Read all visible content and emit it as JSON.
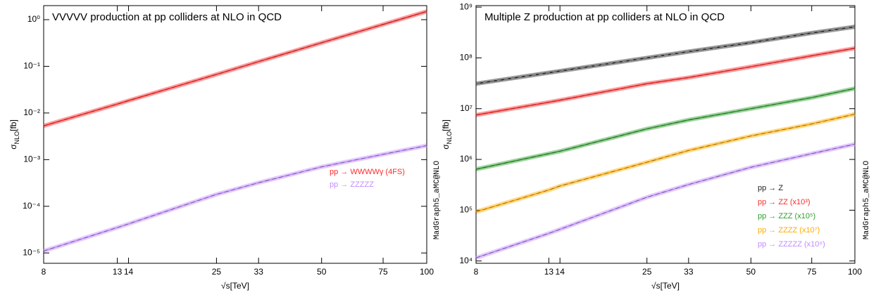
{
  "chart_data": [
    {
      "type": "line",
      "title": "VVVVV production at pp colliders at NLO in QCD",
      "xlabel": "√s[TeV]",
      "ylabel": [
        "σ",
        "NLO",
        "[fb]"
      ],
      "side_text": "MadGraph5_aMC@NLO",
      "xscale": "log",
      "yscale": "log",
      "x": [
        8,
        13,
        14,
        25,
        33,
        50,
        75,
        100
      ],
      "xlim": [
        8,
        100
      ],
      "xticks": [
        8,
        13,
        14,
        25,
        33,
        50,
        75,
        100
      ],
      "ylim": [
        6e-06,
        2
      ],
      "yticks": [
        {
          "value": 1e-05,
          "label": "10⁻⁵"
        },
        {
          "value": 0.0001,
          "label": "10⁻⁴"
        },
        {
          "value": 0.001,
          "label": "10⁻³"
        },
        {
          "value": 0.01,
          "label": "10⁻²"
        },
        {
          "value": 0.1,
          "label": "10⁻¹"
        },
        {
          "value": 1,
          "label": "10⁰"
        }
      ],
      "series": [
        {
          "name": "pp → WWWWγ (4FS)",
          "color": "#ff2a2a",
          "values": [
            0.0053,
            0.0155,
            0.0184,
            0.067,
            0.126,
            0.32,
            0.79,
            1.5
          ]
        },
        {
          "name": "pp → ZZZZZ",
          "color": "#c08cff",
          "values": [
            1.1e-05,
            3.5e-05,
            4.2e-05,
            0.00018,
            0.00032,
            0.0007,
            0.0013,
            0.002
          ]
        }
      ]
    },
    {
      "type": "line",
      "title": "Multiple Z production at pp colliders at NLO in QCD",
      "xlabel": "√s[TeV]",
      "ylabel": [
        "σ",
        "NLO",
        "[fb]"
      ],
      "side_text": "MadGraph5_aMC@NLO",
      "xscale": "log",
      "yscale": "log",
      "x": [
        8,
        13,
        14,
        25,
        33,
        50,
        75,
        100
      ],
      "xlim": [
        8,
        100
      ],
      "xticks": [
        8,
        13,
        14,
        25,
        33,
        50,
        75,
        100
      ],
      "ylim": [
        9000,
        1070000000
      ],
      "yticks": [
        {
          "value": 10000,
          "label": "10⁴"
        },
        {
          "value": 100000,
          "label": "10⁵"
        },
        {
          "value": 1000000,
          "label": "10⁶"
        },
        {
          "value": 10000000,
          "label": "10⁷"
        },
        {
          "value": 100000000,
          "label": "10⁸"
        },
        {
          "value": 1000000000,
          "label": "10⁹"
        }
      ],
      "series": [
        {
          "name": "pp → Z",
          "color": "#222222",
          "values": [
            31000000,
            51000000,
            55000000,
            100000000,
            133000000,
            200000000,
            310000000,
            410000000
          ]
        },
        {
          "name": "pp → ZZ (x10³)",
          "color": "#ff2a2a",
          "values": [
            7500000,
            13400000,
            14700000,
            31000000,
            41000000,
            67000000,
            110000000,
            155000000
          ]
        },
        {
          "name": "pp → ZZZ (x10⁵)",
          "color": "#2e9e2e",
          "values": [
            640000,
            1300000,
            1450000,
            4000000,
            6000000,
            10000000,
            16500000,
            25000000
          ]
        },
        {
          "name": "pp → ZZZZ (x10⁷)",
          "color": "#ffaa00",
          "values": [
            93000,
            250000,
            300000,
            880000,
            1500000,
            2900000,
            5000000,
            7800000
          ]
        },
        {
          "name": "pp → ZZZZZ (x10⁹)",
          "color": "#c08cff",
          "values": [
            11500,
            35000,
            42000,
            180000,
            320000,
            700000,
            1300000,
            2000000
          ]
        }
      ]
    }
  ]
}
